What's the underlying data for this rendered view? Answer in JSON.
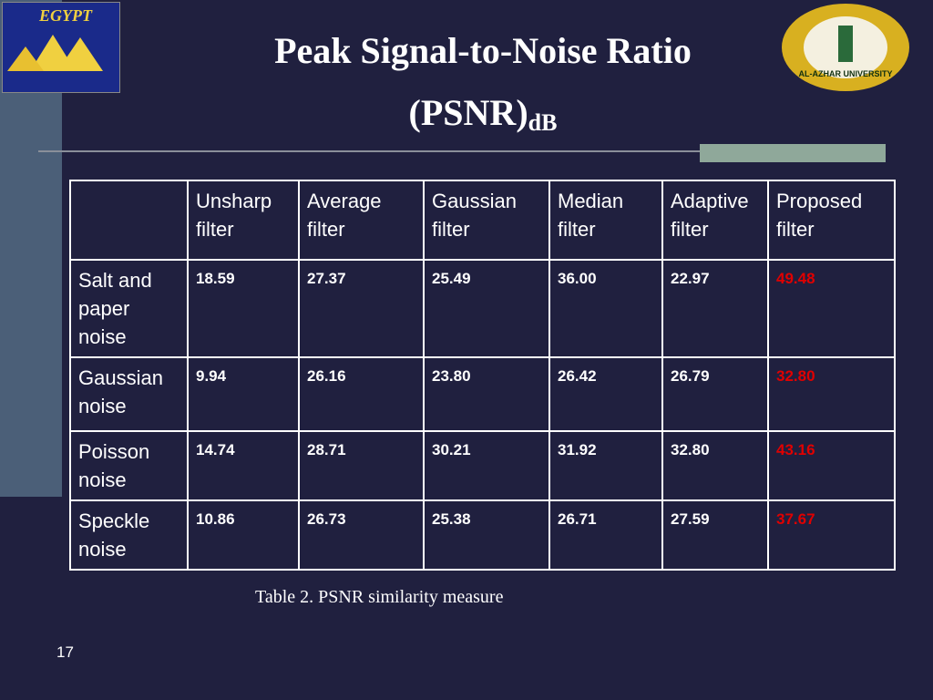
{
  "header": {
    "title_line1": "Peak Signal-to-Noise Ratio",
    "title_line2": "(PSNR)",
    "title_subscript": "dB",
    "logo_left": "EGYPT",
    "logo_right": "AL-AZHAR UNIVERSITY"
  },
  "table": {
    "columns": [
      "Unsharp filter",
      "Average filter",
      "Gaussian filter",
      "Median filter",
      "Adaptive filter",
      "Proposed filter"
    ],
    "rows": [
      {
        "label": "Salt and paper noise",
        "cells": [
          "18.59",
          "27.37",
          "25.49",
          "36.00",
          "22.97",
          "49.48"
        ]
      },
      {
        "label": "Gaussian noise",
        "cells": [
          "9.94",
          "26.16",
          "23.80",
          "26.42",
          "26.79",
          "32.80"
        ]
      },
      {
        "label": "Poisson noise",
        "cells": [
          "14.74",
          "28.71",
          "30.21",
          "31.92",
          "32.80",
          "43.16"
        ]
      },
      {
        "label": "Speckle noise",
        "cells": [
          "10.86",
          "26.73",
          "25.38",
          "26.71",
          "27.59",
          "37.67"
        ]
      }
    ],
    "highlight_color": "#e00000"
  },
  "caption": "Table 2. PSNR similarity measure",
  "page_number": "17"
}
